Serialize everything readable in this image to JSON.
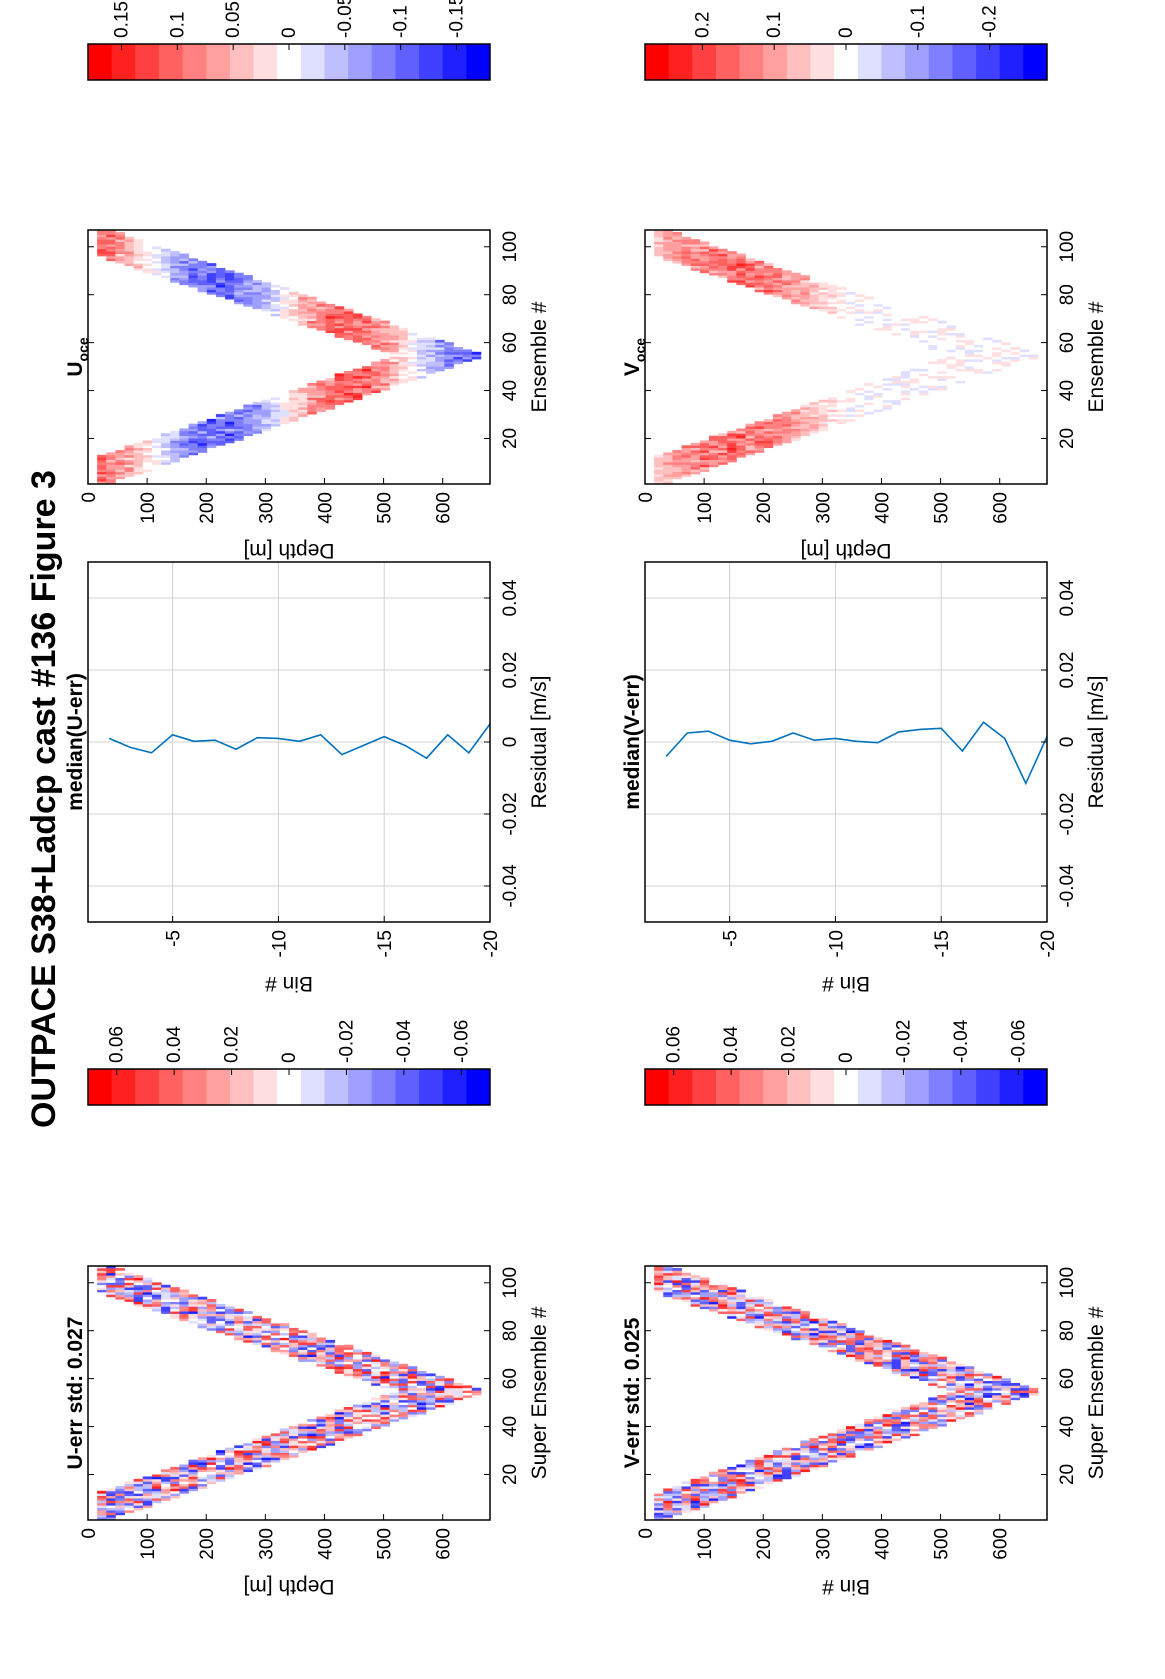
{
  "figure": {
    "title": "OUTPACE S38+Ladcp cast #136  Figure 3"
  },
  "colors": {
    "red": "#ff0000",
    "blue": "#0000ff",
    "line": "#0072bd",
    "grid": "#d0d0d0"
  },
  "panels": {
    "u_err": {
      "title": "U-err std: 0.027",
      "xlabel": "Super Ensemble #",
      "ylabel": "Depth [m]",
      "xticks": [
        "20",
        "40",
        "60",
        "80",
        "100"
      ],
      "yticks": [
        "0",
        "100",
        "200",
        "300",
        "400",
        "500",
        "600"
      ],
      "cbar_ticks": [
        "0.06",
        "0.04",
        "0.02",
        "0",
        "-0.02",
        "-0.04",
        "-0.06"
      ]
    },
    "v_err": {
      "title": "V-err std: 0.025",
      "xlabel": "Super Ensemble #",
      "ylabel": "Bin #",
      "xticks": [
        "20",
        "40",
        "60",
        "80",
        "100"
      ],
      "yticks": [
        "0",
        "100",
        "200",
        "300",
        "400",
        "500",
        "600"
      ],
      "cbar_ticks": [
        "0.06",
        "0.04",
        "0.02",
        "0",
        "-0.02",
        "-0.04",
        "-0.06"
      ]
    },
    "median_u": {
      "title": "median(U-err)",
      "xlabel": "Residual [m/s]",
      "ylabel": "Bin #",
      "xticks": [
        "-0.04",
        "-0.02",
        "0",
        "0.02",
        "0.04"
      ],
      "yticks": [
        "-5",
        "-10",
        "-15",
        "-20"
      ]
    },
    "median_v": {
      "title": "median(V-err)",
      "xlabel": "Residual [m/s]",
      "ylabel": "Bin #",
      "xticks": [
        "-0.04",
        "-0.02",
        "0",
        "0.02",
        "0.04"
      ],
      "yticks": [
        "-5",
        "-10",
        "-15",
        "-20"
      ]
    },
    "u_oce": {
      "title_main": "U",
      "title_sub": "oce",
      "xlabel": "Ensemble #",
      "ylabel": "Depth [m]",
      "xticks": [
        "20",
        "40",
        "60",
        "80",
        "100"
      ],
      "yticks": [
        "0",
        "100",
        "200",
        "300",
        "400",
        "500",
        "600"
      ],
      "cbar_ticks": [
        "0.15",
        "0.1",
        "0.05",
        "0",
        "-0.05",
        "-0.1",
        "-0.15"
      ]
    },
    "v_oce": {
      "title_main": "V",
      "title_sub": "oce",
      "xlabel": "Ensemble #",
      "ylabel": "Depth [m]",
      "xticks": [
        "20",
        "40",
        "60",
        "80",
        "100"
      ],
      "yticks": [
        "0",
        "100",
        "200",
        "300",
        "400",
        "500",
        "600"
      ],
      "cbar_ticks": [
        "0.2",
        "0.1",
        "0",
        "-0.1",
        "-0.2"
      ]
    }
  },
  "chart_data": [
    {
      "type": "heatmap",
      "title": "U-err std: 0.027",
      "xlabel": "Super Ensemble #",
      "ylabel": "Depth [m]",
      "xlim": [
        1,
        106
      ],
      "ylim": [
        0,
        680
      ],
      "clim": [
        -0.07,
        0.07
      ],
      "colormap": "blue-white-red",
      "shape": "V-shaped cast: depth increases from ~30 m at ensemble 1 to ~660 m at ensemble 54, then back to ~30 m at ensemble 106"
    },
    {
      "type": "line",
      "title": "median(U-err)",
      "xlabel": "Residual [m/s]",
      "ylabel": "Bin #",
      "xlim": [
        -0.05,
        0.05
      ],
      "ylim": [
        -20,
        -1
      ],
      "grid": true,
      "y": [
        -2,
        -3,
        -4,
        -5,
        -6,
        -7,
        -8,
        -9,
        -10,
        -11,
        -12,
        -13,
        -14,
        -15,
        -16,
        -17,
        -18,
        -19,
        -20
      ],
      "x": [
        0.001,
        -0.0015,
        -0.003,
        0.002,
        0.0002,
        0.0005,
        -0.002,
        0.0012,
        0.001,
        0.0002,
        0.002,
        -0.0035,
        -0.001,
        0.0015,
        -0.001,
        -0.0045,
        0.002,
        -0.003,
        0.005
      ]
    },
    {
      "type": "heatmap",
      "title": "U oce",
      "xlabel": "Ensemble #",
      "ylabel": "Depth [m]",
      "xlim": [
        1,
        106
      ],
      "ylim": [
        0,
        680
      ],
      "clim": [
        -0.18,
        0.18
      ],
      "colormap": "blue-white-red",
      "shape": "V-shaped cast: depth increases from ~30 m at ensemble 1 to ~660 m at ensemble 54, then back to ~30 m at ensemble 106"
    },
    {
      "type": "heatmap",
      "title": "V-err std: 0.025",
      "xlabel": "Super Ensemble #",
      "ylabel": "Bin #",
      "xlim": [
        1,
        106
      ],
      "ylim": [
        0,
        680
      ],
      "clim": [
        -0.07,
        0.07
      ],
      "colormap": "blue-white-red",
      "shape": "V-shaped cast: depth increases from ~30 m at ensemble 1 to ~660 m at ensemble 54, then back to ~30 m at ensemble 106"
    },
    {
      "type": "line",
      "title": "median(V-err)",
      "xlabel": "Residual [m/s]",
      "ylabel": "Bin #",
      "xlim": [
        -0.05,
        0.05
      ],
      "ylim": [
        -20,
        -1
      ],
      "grid": true,
      "y": [
        -2,
        -3,
        -4,
        -5,
        -6,
        -7,
        -8,
        -9,
        -10,
        -11,
        -12,
        -13,
        -14,
        -15,
        -16,
        -17,
        -18,
        -19,
        -20
      ],
      "x": [
        -0.004,
        0.0025,
        0.003,
        0.0005,
        -0.0005,
        0.0002,
        0.0025,
        0.0005,
        0.001,
        0.0002,
        -0.0002,
        0.0028,
        0.0035,
        0.0038,
        -0.0025,
        0.0055,
        0.001,
        -0.0115,
        0.0015
      ]
    },
    {
      "type": "heatmap",
      "title": "V oce",
      "xlabel": "Ensemble #",
      "ylabel": "Depth [m]",
      "xlim": [
        1,
        106
      ],
      "ylim": [
        0,
        680
      ],
      "clim": [
        -0.28,
        0.28
      ],
      "colormap": "blue-white-red",
      "shape": "V-shaped cast: depth increases from ~30 m at ensemble 1 to ~660 m at ensemble 54, then back to ~30 m at ensemble 106"
    }
  ]
}
